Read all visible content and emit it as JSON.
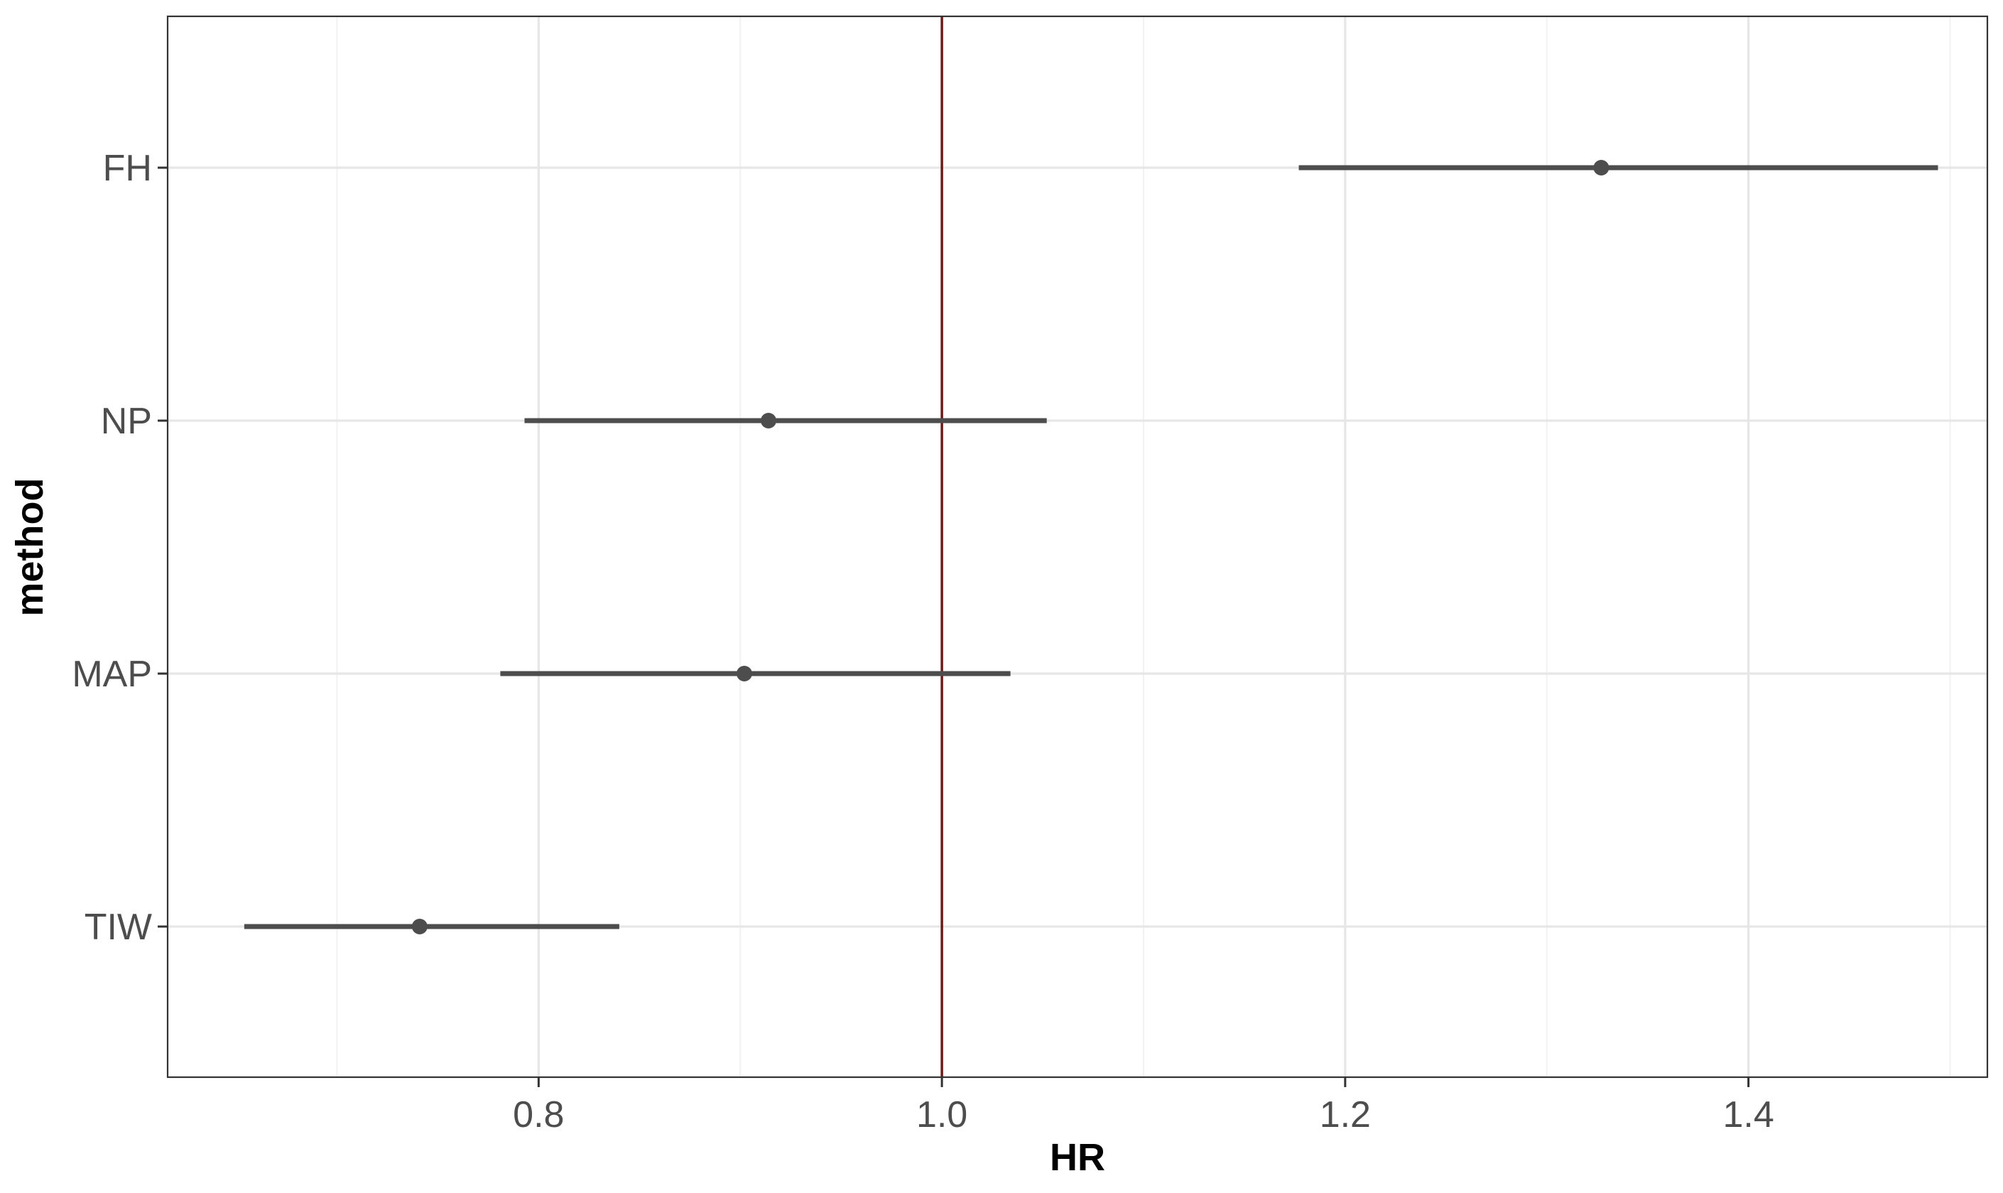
{
  "chart_data": {
    "type": "forest",
    "xlabel": "HR",
    "ylabel": "method",
    "xlim": [
      0.616,
      1.5185
    ],
    "x_ticks": [
      0.8,
      1.0,
      1.2,
      1.4
    ],
    "x_tick_labels": [
      "0.8",
      "1.0",
      "1.2",
      "1.4"
    ],
    "x_minor_ticks": [
      0.7,
      0.9,
      1.1,
      1.3,
      1.5
    ],
    "categories": [
      "FH",
      "NP",
      "MAP",
      "TIW"
    ],
    "estimates": [
      1.327,
      0.914,
      0.902,
      0.741
    ],
    "lower": [
      1.177,
      0.793,
      0.781,
      0.654
    ],
    "upper": [
      1.494,
      1.052,
      1.034,
      0.84
    ],
    "reference_line": 1.0,
    "grid": true,
    "colors": {
      "point": "#4d4d4d",
      "interval": "#4d4d4d",
      "reference_line": "#6b1a1a",
      "grid_major": "#e6e6e6",
      "grid_minor": "#f2f2f2",
      "border": "#333333"
    }
  }
}
